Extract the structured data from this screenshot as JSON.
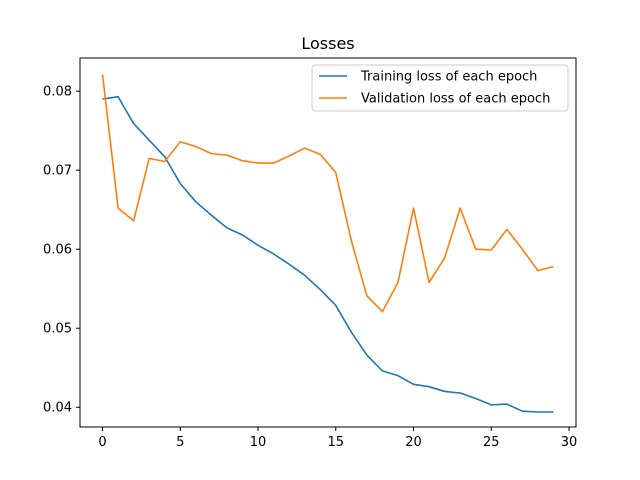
{
  "chart_data": {
    "type": "line",
    "title": "Losses",
    "xlabel": "",
    "ylabel": "",
    "xlim": [
      -1.45,
      30.45
    ],
    "ylim": [
      0.0375,
      0.0842
    ],
    "x_ticks": [
      0,
      5,
      10,
      15,
      20,
      25,
      30
    ],
    "x_tick_labels": [
      "0",
      "5",
      "10",
      "15",
      "20",
      "25",
      "30"
    ],
    "y_ticks": [
      0.04,
      0.05,
      0.06,
      0.07,
      0.08
    ],
    "y_tick_labels": [
      "0.04",
      "0.05",
      "0.06",
      "0.07",
      "0.08"
    ],
    "grid": false,
    "legend_position": "top-right",
    "x": [
      0,
      1,
      2,
      3,
      4,
      5,
      6,
      7,
      8,
      9,
      10,
      11,
      12,
      13,
      14,
      15,
      16,
      17,
      18,
      19,
      20,
      21,
      22,
      23,
      24,
      25,
      26,
      27,
      28,
      29
    ],
    "series": [
      {
        "name": "Training loss of each epoch",
        "color": "#1f77b4",
        "values": [
          0.079,
          0.0793,
          0.0759,
          0.0738,
          0.0717,
          0.0683,
          0.066,
          0.0643,
          0.0627,
          0.0618,
          0.0605,
          0.0594,
          0.0581,
          0.0567,
          0.0549,
          0.0529,
          0.0495,
          0.0466,
          0.0446,
          0.044,
          0.0429,
          0.0426,
          0.042,
          0.0418,
          0.0411,
          0.0403,
          0.0404,
          0.0395,
          0.0394,
          0.0394
        ]
      },
      {
        "name": "Validation loss of each epoch",
        "color": "#ff7f0e",
        "values": [
          0.0821,
          0.0652,
          0.0636,
          0.0715,
          0.0711,
          0.0736,
          0.073,
          0.0721,
          0.0719,
          0.0712,
          0.0709,
          0.0709,
          0.0718,
          0.0728,
          0.072,
          0.0697,
          0.0611,
          0.0541,
          0.0521,
          0.0558,
          0.0652,
          0.0558,
          0.0589,
          0.0652,
          0.06,
          0.0599,
          0.0625,
          0.06,
          0.0573,
          0.0578
        ]
      }
    ]
  }
}
